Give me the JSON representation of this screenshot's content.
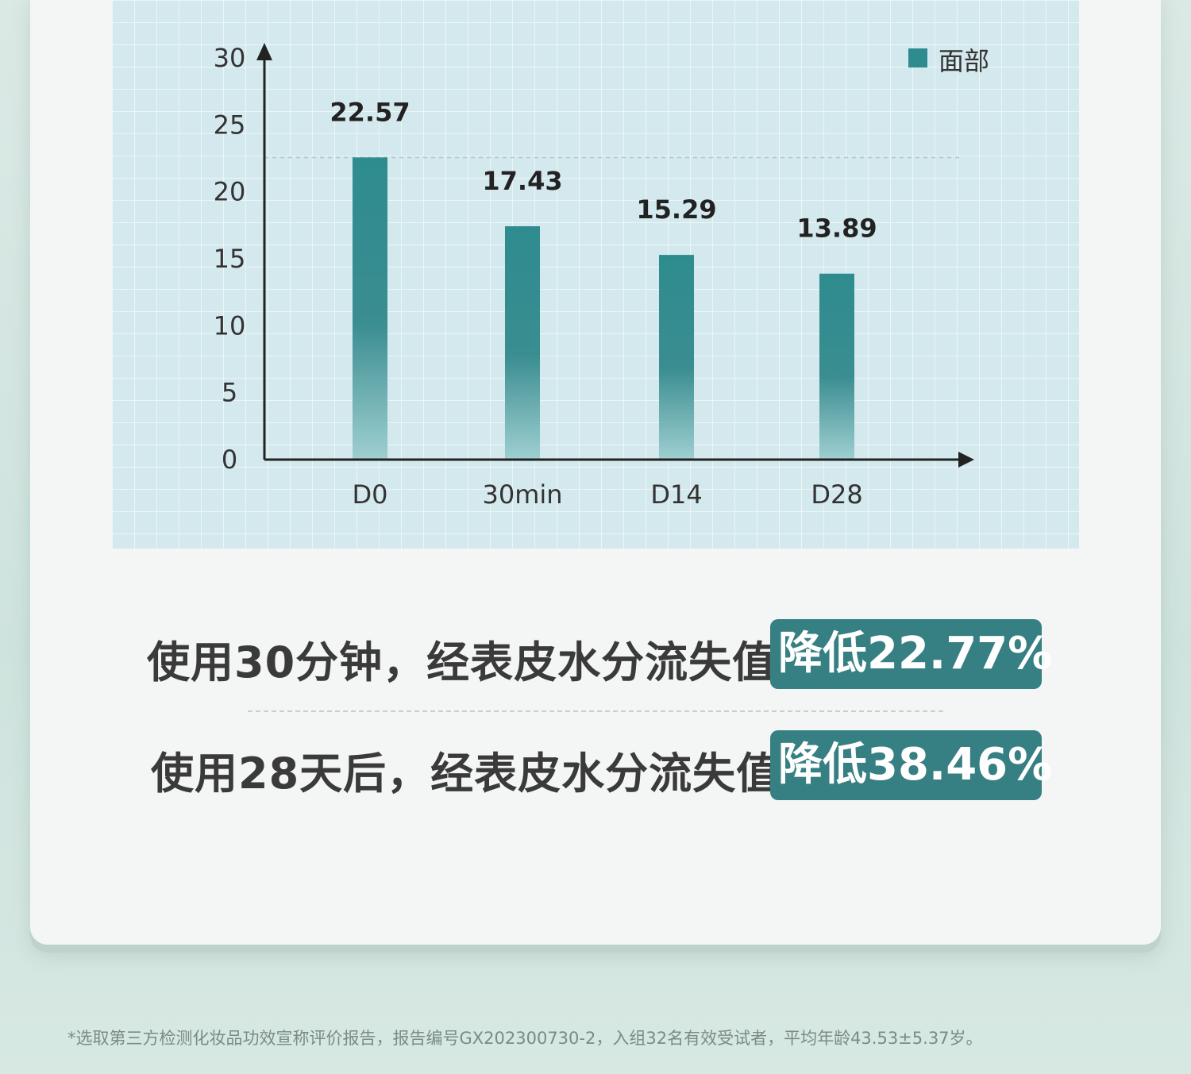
{
  "chart_data": {
    "type": "bar",
    "categories": [
      "D0",
      "30min",
      "D14",
      "D28"
    ],
    "series": [
      {
        "name": "面部",
        "values": [
          22.57,
          17.43,
          15.29,
          13.89
        ],
        "data_labels": [
          "22.57",
          "17.43",
          "15.29",
          "13.89"
        ]
      }
    ],
    "yticks": [
      "0",
      "5",
      "10",
      "15",
      "20",
      "25",
      "30"
    ],
    "ylim": [
      0,
      30
    ],
    "legend": "top-right",
    "bar_color": "#2e8c8f",
    "reference_line": 22.57
  },
  "legend_label": "面部",
  "stats": [
    {
      "text": "使用30分钟，经表皮水分流失值",
      "badge": "降低22.77%"
    },
    {
      "text": "使用28天后，经表皮水分流失值",
      "badge": "降低38.46%"
    }
  ],
  "footnote": "*选取第三方检测化妆品功效宣称评价报告，报告编号GX202300730-2，入组32名有效受试者，平均年龄43.53±5.37岁。",
  "colors": {
    "accent": "#367f82",
    "panel": "#d4e9ee"
  }
}
